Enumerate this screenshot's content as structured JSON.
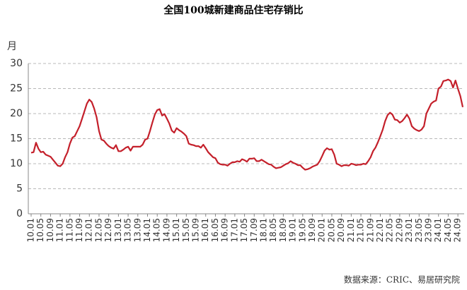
{
  "chart_data": {
    "type": "line",
    "title": "全国100城新建商品住宅存销比",
    "y_label": "月",
    "source": "数据来源：CRIC、易居研究院",
    "categories": [
      "10.01",
      null,
      null,
      null,
      "10.05",
      null,
      null,
      null,
      "10.09",
      null,
      null,
      null,
      "11.01",
      null,
      null,
      null,
      "11.05",
      null,
      null,
      null,
      "11.09",
      null,
      null,
      null,
      "12.01",
      null,
      null,
      null,
      "12.05",
      null,
      null,
      null,
      "12.09",
      null,
      null,
      null,
      "13.01",
      null,
      null,
      null,
      "13.05",
      null,
      null,
      null,
      "13.09",
      null,
      null,
      null,
      "14.01",
      null,
      null,
      null,
      "14.05",
      null,
      null,
      null,
      "14.09",
      null,
      null,
      null,
      "15.01",
      null,
      null,
      null,
      "15.05",
      null,
      null,
      null,
      "15.09",
      null,
      null,
      null,
      "16.01",
      null,
      null,
      null,
      "16.05",
      null,
      null,
      null,
      "16.09",
      null,
      null,
      null,
      "17.01",
      null,
      null,
      null,
      "17.05",
      null,
      null,
      null,
      "17.09",
      null,
      null,
      null,
      "18.01",
      null,
      null,
      null,
      "18.05",
      null,
      null,
      null,
      "18.09",
      null,
      null,
      null,
      "19.01",
      null,
      null,
      null,
      "19.05",
      null,
      null,
      null,
      "19.09",
      null,
      null,
      null,
      "20.01",
      null,
      null,
      null,
      "20.05",
      null,
      null,
      null,
      "20.09",
      null,
      null,
      null,
      "21.01",
      null,
      null,
      null,
      "21.05",
      null,
      null,
      null,
      "21.09",
      null,
      null,
      null,
      "22.01",
      null,
      null,
      null,
      "22.05",
      null,
      null,
      null,
      "22.09",
      null,
      null,
      null,
      "23.01",
      null,
      null,
      null,
      "23.05",
      null,
      null,
      null,
      "23.09",
      null,
      null,
      null,
      "24.01",
      null,
      null,
      null,
      "24.05",
      null,
      null,
      null,
      "24.09",
      null,
      null
    ],
    "series": [
      {
        "name": "存销比",
        "color": "#c4202b",
        "values": [
          12.2,
          12.3,
          14.2,
          13,
          12.3,
          12.4,
          11.8,
          11.6,
          11.4,
          10.8,
          10.2,
          9.6,
          9.5,
          10,
          11.3,
          12.3,
          14,
          15.2,
          15.5,
          16.5,
          17.5,
          19,
          20.5,
          22,
          22.8,
          22.3,
          21,
          19.3,
          16.5,
          14.8,
          14.6,
          14,
          13.5,
          13.2,
          13,
          13.7,
          12.5,
          12.5,
          12.8,
          13.2,
          13.4,
          12.6,
          13.4,
          13.4,
          13.4,
          13.4,
          13.8,
          14.8,
          15,
          16.5,
          18.2,
          19.8,
          20.7,
          20.9,
          19.6,
          19.9,
          19,
          18,
          16.6,
          16.2,
          17.1,
          16.7,
          16.4,
          16,
          15.5,
          14,
          13.8,
          13.7,
          13.5,
          13.5,
          13.2,
          13.8,
          13.1,
          12.3,
          11.8,
          11.3,
          11.1,
          10.2,
          9.9,
          9.8,
          9.8,
          9.6,
          10,
          10.3,
          10.3,
          10.5,
          10.4,
          10.9,
          10.7,
          10.4,
          11,
          11,
          11.1,
          10.5,
          10.5,
          10.8,
          10.5,
          10.2,
          9.9,
          9.8,
          9.4,
          9.1,
          9.2,
          9.3,
          9.6,
          9.9,
          10.1,
          10.5,
          10.2,
          10,
          9.7,
          9.7,
          9.2,
          8.8,
          8.9,
          9.1,
          9.4,
          9.6,
          9.8,
          10.5,
          11.5,
          12.6,
          13.1,
          12.8,
          12.9,
          11.8,
          10,
          9.8,
          9.5,
          9.7,
          9.7,
          9.6,
          10,
          9.9,
          9.7,
          9.8,
          9.8,
          10,
          9.9,
          10.5,
          11.3,
          12.5,
          13.2,
          14.3,
          15.5,
          16.8,
          18.5,
          19.7,
          20.2,
          19.8,
          18.8,
          18.7,
          18.2,
          18.5,
          19.1,
          19.8,
          19,
          17.5,
          17,
          16.7,
          16.5,
          16.8,
          17.5,
          20,
          21,
          22,
          22.4,
          22.6,
          25,
          25.4,
          26.5,
          26.6,
          26.8,
          26.5,
          25.2,
          26.6,
          25,
          23.5,
          21.3
        ]
      }
    ],
    "ylim": [
      0,
      30
    ],
    "yticks": [
      0,
      5,
      10,
      15,
      20,
      25,
      30
    ],
    "grid": true
  }
}
